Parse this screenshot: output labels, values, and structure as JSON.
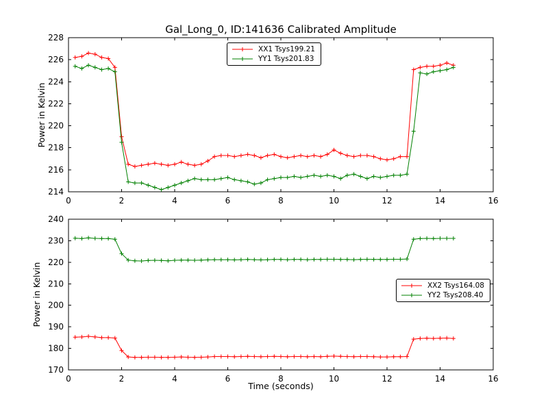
{
  "figure": {
    "title": "Gal_Long_0, ID:141636 Calibrated Amplitude",
    "background": "#ffffff"
  },
  "chart_data": [
    {
      "type": "line",
      "title": "",
      "xlabel": "",
      "ylabel": "Power in Kelvin",
      "xlim": [
        0,
        16
      ],
      "ylim": [
        214,
        228
      ],
      "xticks": [
        0,
        2,
        4,
        6,
        8,
        10,
        12,
        14,
        16
      ],
      "yticks": [
        214,
        216,
        218,
        220,
        222,
        224,
        226,
        228
      ],
      "grid": false,
      "legend_position": "upper center",
      "marker": "plus",
      "x": [
        0.25,
        0.5,
        0.75,
        1,
        1.25,
        1.5,
        1.75,
        2,
        2.25,
        2.5,
        2.75,
        3,
        3.25,
        3.5,
        3.75,
        4,
        4.25,
        4.5,
        4.75,
        5,
        5.25,
        5.5,
        5.75,
        6,
        6.25,
        6.5,
        6.75,
        7,
        7.25,
        7.5,
        7.75,
        8,
        8.25,
        8.5,
        8.75,
        9,
        9.25,
        9.5,
        9.75,
        10,
        10.25,
        10.5,
        10.75,
        11,
        11.25,
        11.5,
        11.75,
        12,
        12.25,
        12.5,
        12.75,
        13,
        13.25,
        13.5,
        13.75,
        14,
        14.25,
        14.5
      ],
      "series": [
        {
          "name": "XX1 Tsys199.21",
          "color": "#ff0000",
          "values": [
            226.2,
            226.3,
            226.6,
            226.5,
            226.2,
            226.1,
            225.3,
            219.0,
            216.5,
            216.3,
            216.4,
            216.5,
            216.6,
            216.5,
            216.4,
            216.5,
            216.7,
            216.5,
            216.4,
            216.5,
            216.8,
            217.2,
            217.3,
            217.3,
            217.2,
            217.3,
            217.4,
            217.3,
            217.1,
            217.3,
            217.4,
            217.2,
            217.1,
            217.2,
            217.3,
            217.2,
            217.3,
            217.2,
            217.4,
            217.8,
            217.5,
            217.3,
            217.2,
            217.3,
            217.3,
            217.2,
            217.0,
            216.9,
            217.0,
            217.2,
            217.2,
            225.1,
            225.3,
            225.4,
            225.4,
            225.5,
            225.7,
            225.5
          ]
        },
        {
          "name": "YY1 Tsys201.83",
          "color": "#008000",
          "values": [
            225.4,
            225.2,
            225.5,
            225.3,
            225.1,
            225.2,
            224.9,
            218.5,
            214.9,
            214.8,
            214.8,
            214.6,
            214.4,
            214.2,
            214.4,
            214.6,
            214.8,
            215.0,
            215.2,
            215.1,
            215.1,
            215.1,
            215.2,
            215.3,
            215.1,
            215.0,
            214.9,
            214.7,
            214.8,
            215.1,
            215.2,
            215.3,
            215.3,
            215.4,
            215.3,
            215.4,
            215.5,
            215.4,
            215.5,
            215.4,
            215.2,
            215.5,
            215.6,
            215.4,
            215.2,
            215.4,
            215.3,
            215.4,
            215.5,
            215.5,
            215.6,
            219.5,
            224.8,
            224.7,
            224.9,
            225.0,
            225.1,
            225.3
          ]
        }
      ]
    },
    {
      "type": "line",
      "title": "",
      "xlabel": "Time (seconds)",
      "ylabel": "Power in Kelvin",
      "xlim": [
        0,
        16
      ],
      "ylim": [
        170,
        240
      ],
      "xticks": [
        0,
        2,
        4,
        6,
        8,
        10,
        12,
        14,
        16
      ],
      "yticks": [
        170,
        180,
        190,
        200,
        210,
        220,
        230,
        240
      ],
      "grid": false,
      "legend_position": "center right",
      "marker": "plus",
      "x": [
        0.25,
        0.5,
        0.75,
        1,
        1.25,
        1.5,
        1.75,
        2,
        2.25,
        2.5,
        2.75,
        3,
        3.25,
        3.5,
        3.75,
        4,
        4.25,
        4.5,
        4.75,
        5,
        5.25,
        5.5,
        5.75,
        6,
        6.25,
        6.5,
        6.75,
        7,
        7.25,
        7.5,
        7.75,
        8,
        8.25,
        8.5,
        8.75,
        9,
        9.25,
        9.5,
        9.75,
        10,
        10.25,
        10.5,
        10.75,
        11,
        11.25,
        11.5,
        11.75,
        12,
        12.25,
        12.5,
        12.75,
        13,
        13.25,
        13.5,
        13.75,
        14,
        14.25,
        14.5
      ],
      "series": [
        {
          "name": "XX2 Tsys164.08",
          "color": "#ff0000",
          "values": [
            185.2,
            185.3,
            185.6,
            185.3,
            185.0,
            185.0,
            184.8,
            179.0,
            176.0,
            175.8,
            175.8,
            175.9,
            175.9,
            175.8,
            175.8,
            175.9,
            176.0,
            175.9,
            175.8,
            175.9,
            176.0,
            176.2,
            176.2,
            176.2,
            176.1,
            176.2,
            176.3,
            176.2,
            176.1,
            176.2,
            176.3,
            176.2,
            176.1,
            176.2,
            176.2,
            176.1,
            176.2,
            176.1,
            176.3,
            176.4,
            176.3,
            176.2,
            176.1,
            176.2,
            176.2,
            176.1,
            176.0,
            176.0,
            176.1,
            176.1,
            176.2,
            184.3,
            184.6,
            184.7,
            184.6,
            184.7,
            184.8,
            184.6
          ]
        },
        {
          "name": "YY2 Tsys208.40",
          "color": "#008000",
          "values": [
            231.2,
            231.0,
            231.3,
            231.1,
            231.0,
            231.0,
            230.7,
            224.0,
            221.0,
            220.7,
            220.6,
            220.8,
            220.9,
            220.8,
            220.7,
            220.9,
            221.0,
            221.0,
            220.9,
            221.0,
            221.1,
            221.2,
            221.2,
            221.2,
            221.1,
            221.2,
            221.3,
            221.2,
            221.1,
            221.2,
            221.3,
            221.3,
            221.2,
            221.3,
            221.3,
            221.2,
            221.3,
            221.3,
            221.4,
            221.4,
            221.3,
            221.3,
            221.2,
            221.3,
            221.4,
            221.3,
            221.3,
            221.3,
            221.4,
            221.4,
            221.5,
            230.7,
            231.0,
            231.1,
            231.0,
            231.1,
            231.1,
            231.1
          ]
        }
      ]
    }
  ]
}
